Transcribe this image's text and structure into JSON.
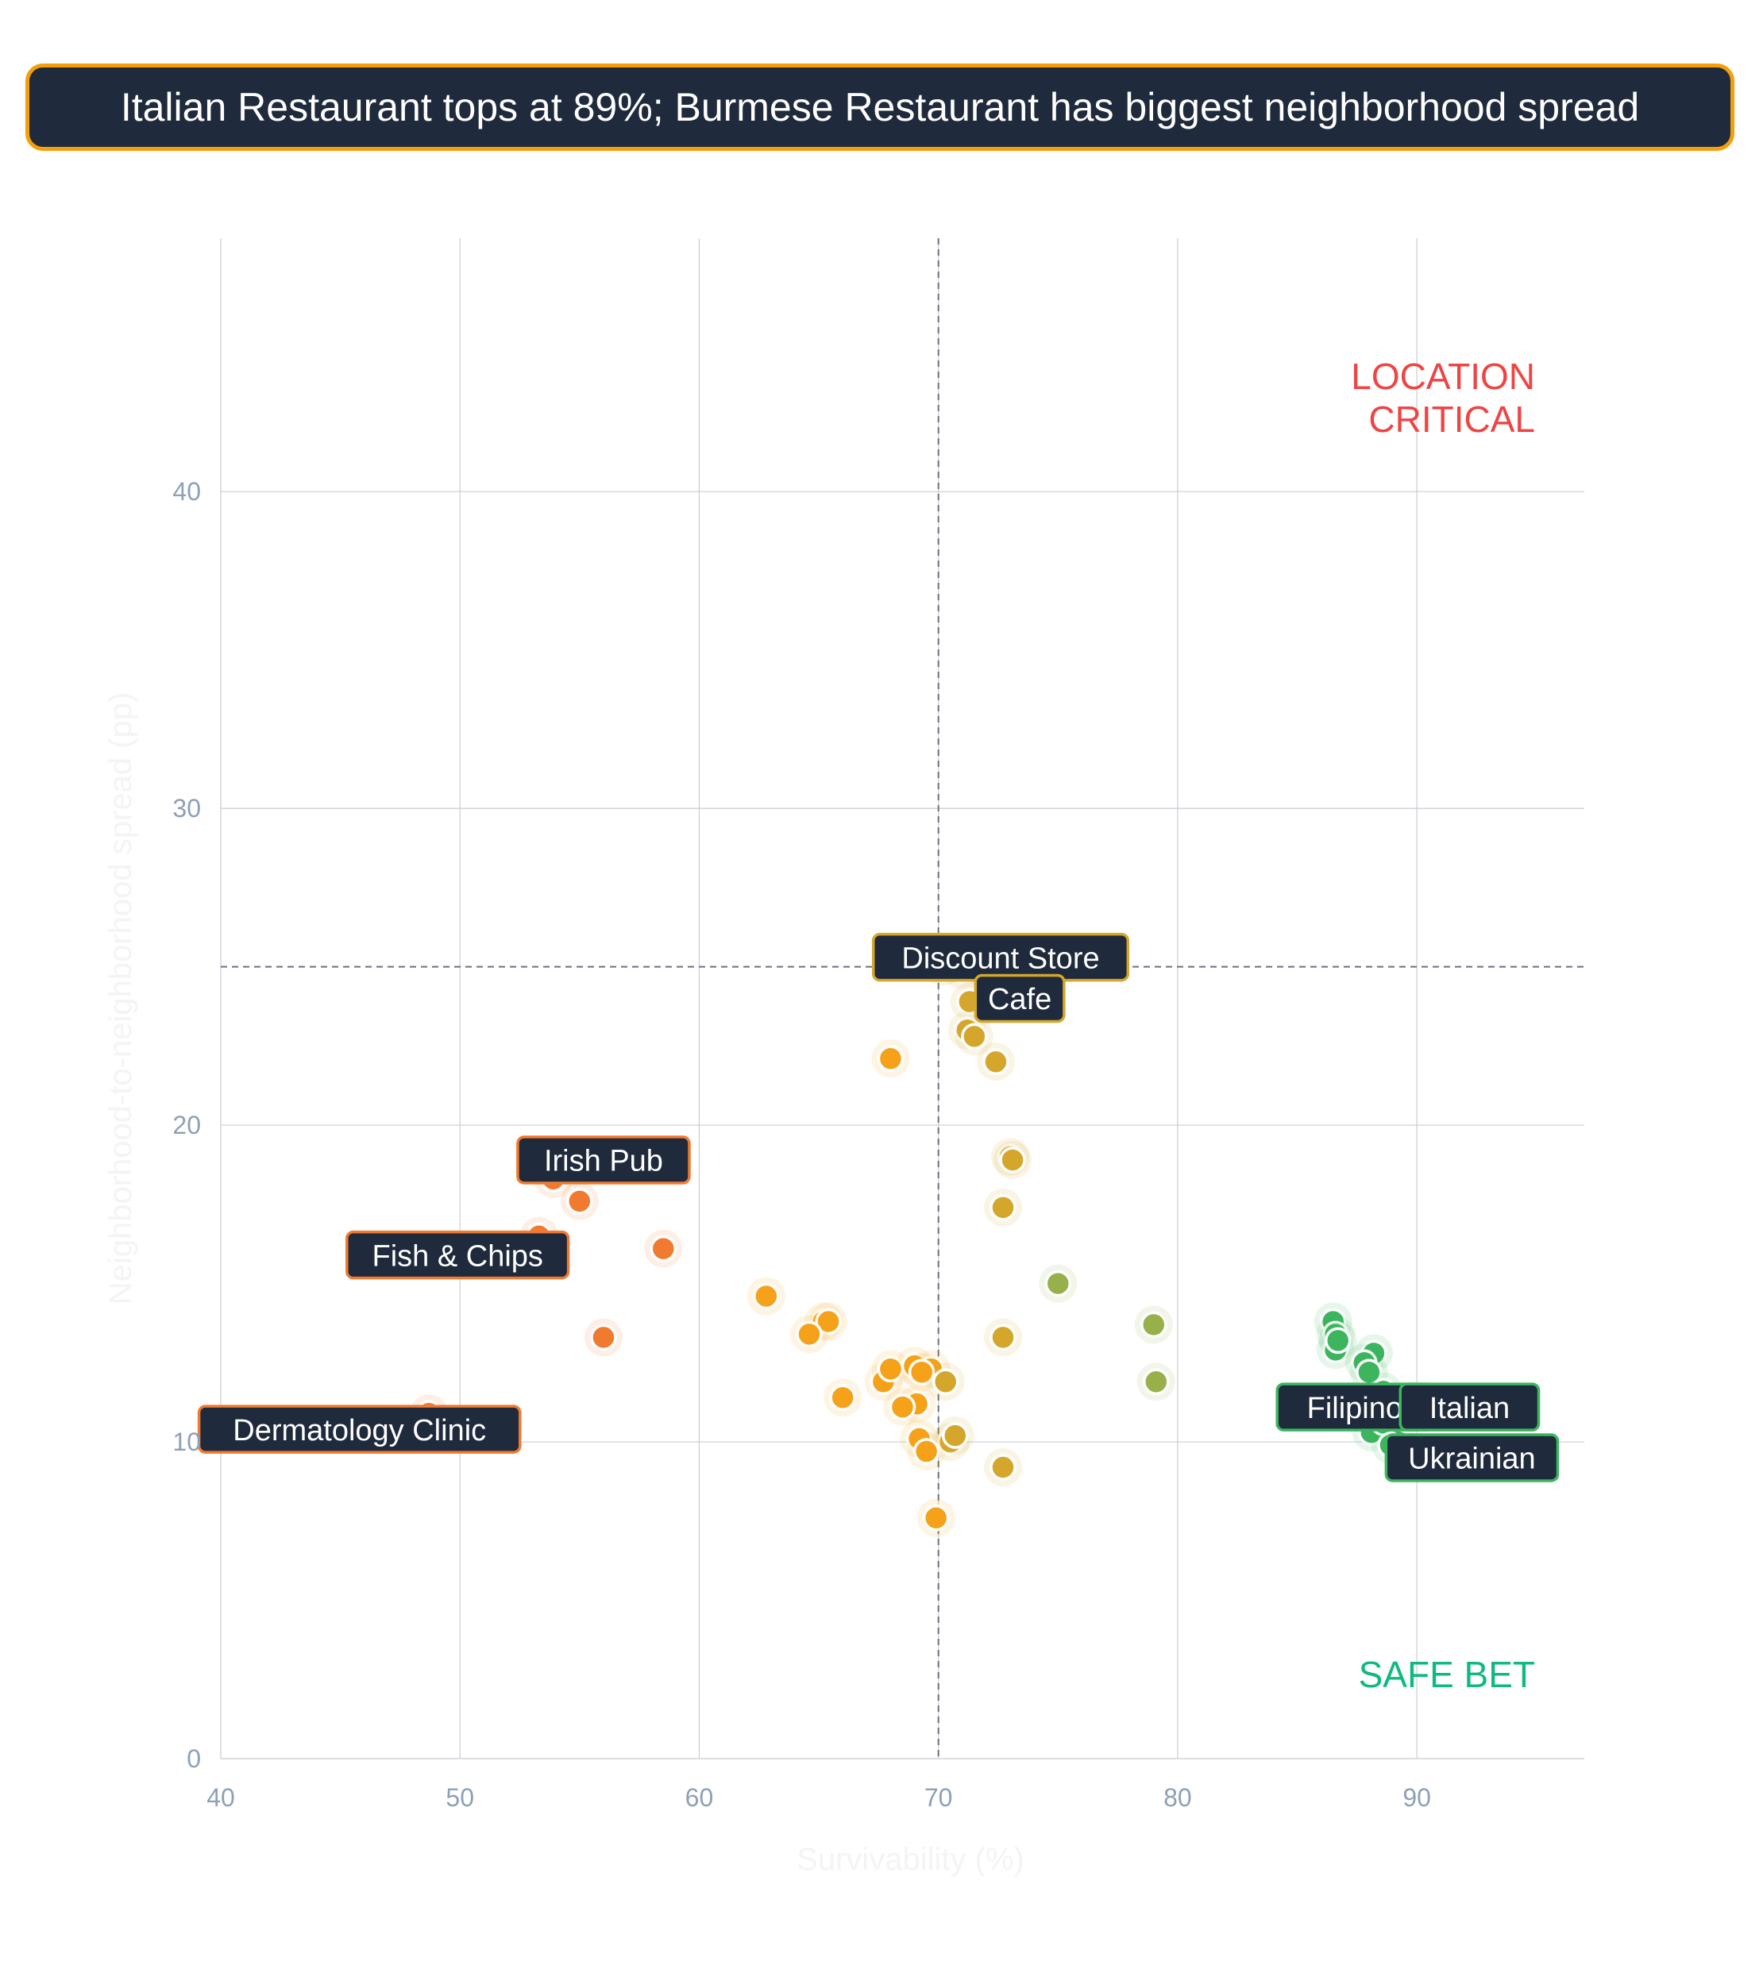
{
  "title": "Italian Restaurant tops at 89%; Burmese Restaurant has biggest neighborhood spread",
  "colors": {
    "title_bg": "#1f2a3c",
    "title_border": "#f59e0b",
    "label_bg": "#1f2a3c",
    "grid": "#c9ccd4",
    "tick": "#8ea0b6",
    "axis_title": "#f3f4f6",
    "danger": "#ef4444",
    "safe": "#10b981",
    "tier_low": "#f07a30",
    "tier_mid": "#f5a21a",
    "tier_midhigh": "#d4a72c",
    "tier_olive": "#97b04a",
    "tier_high": "#3cb55e"
  },
  "chart_data": {
    "type": "scatter",
    "title": "Italian Restaurant tops at 89%; Burmese Restaurant has biggest neighborhood spread",
    "xlabel": "Survivability (%)",
    "ylabel": "Neighborhood-to-neighborhood spread (pp)",
    "xlim": [
      40,
      97
    ],
    "ylim": [
      0,
      48
    ],
    "x_ticks": [
      40,
      50,
      60,
      70,
      80,
      90
    ],
    "y_ticks": [
      0,
      10,
      20,
      30,
      40
    ],
    "grid": true,
    "reference_lines": {
      "x": 70,
      "y": 25
    },
    "quadrant_labels": [
      {
        "text": "LOCATION\nCRITICAL",
        "position": "top-right",
        "color_key": "danger"
      },
      {
        "text": "SAFE BET",
        "position": "bottom-right",
        "color_key": "safe"
      }
    ],
    "points": [
      {
        "x": 70.2,
        "y": 25.0,
        "tier": "tier_midhigh"
      },
      {
        "x": 71.0,
        "y": 24.9,
        "tier": "tier_midhigh"
      },
      {
        "x": 71.8,
        "y": 25.0,
        "tier": "tier_midhigh"
      },
      {
        "x": 71.3,
        "y": 23.9,
        "tier": "tier_midhigh"
      },
      {
        "x": 71.2,
        "y": 23.0,
        "tier": "tier_midhigh"
      },
      {
        "x": 71.5,
        "y": 22.8,
        "tier": "tier_midhigh"
      },
      {
        "x": 72.4,
        "y": 22.0,
        "tier": "tier_midhigh"
      },
      {
        "x": 68.0,
        "y": 22.1,
        "tier": "tier_mid"
      },
      {
        "x": 73.0,
        "y": 19.0,
        "tier": "tier_midhigh"
      },
      {
        "x": 73.1,
        "y": 18.9,
        "tier": "tier_midhigh"
      },
      {
        "x": 72.7,
        "y": 17.4,
        "tier": "tier_midhigh"
      },
      {
        "x": 75.0,
        "y": 15.0,
        "tier": "tier_olive"
      },
      {
        "x": 72.7,
        "y": 13.3,
        "tier": "tier_midhigh"
      },
      {
        "x": 79.0,
        "y": 13.7,
        "tier": "tier_olive"
      },
      {
        "x": 79.1,
        "y": 11.9,
        "tier": "tier_olive"
      },
      {
        "x": 72.7,
        "y": 9.2,
        "tier": "tier_midhigh"
      },
      {
        "x": 53.9,
        "y": 18.3,
        "tier": "tier_low"
      },
      {
        "x": 55.0,
        "y": 17.6,
        "tier": "tier_low"
      },
      {
        "x": 53.3,
        "y": 16.5,
        "tier": "tier_low"
      },
      {
        "x": 58.5,
        "y": 16.1,
        "tier": "tier_low"
      },
      {
        "x": 56.0,
        "y": 13.3,
        "tier": "tier_low"
      },
      {
        "x": 48.7,
        "y": 10.9,
        "tier": "tier_low"
      },
      {
        "x": 62.8,
        "y": 14.6,
        "tier": "tier_mid"
      },
      {
        "x": 65.2,
        "y": 13.8,
        "tier": "tier_mid"
      },
      {
        "x": 65.4,
        "y": 13.8,
        "tier": "tier_mid"
      },
      {
        "x": 64.6,
        "y": 13.4,
        "tier": "tier_mid"
      },
      {
        "x": 66.0,
        "y": 11.4,
        "tier": "tier_mid"
      },
      {
        "x": 67.7,
        "y": 11.9,
        "tier": "tier_mid"
      },
      {
        "x": 68.0,
        "y": 12.3,
        "tier": "tier_mid"
      },
      {
        "x": 69.0,
        "y": 12.4,
        "tier": "tier_mid"
      },
      {
        "x": 69.7,
        "y": 12.3,
        "tier": "tier_mid"
      },
      {
        "x": 69.3,
        "y": 12.2,
        "tier": "tier_mid"
      },
      {
        "x": 70.3,
        "y": 11.9,
        "tier": "tier_midhigh"
      },
      {
        "x": 69.1,
        "y": 11.2,
        "tier": "tier_mid"
      },
      {
        "x": 68.5,
        "y": 11.1,
        "tier": "tier_mid"
      },
      {
        "x": 69.2,
        "y": 10.1,
        "tier": "tier_mid"
      },
      {
        "x": 70.5,
        "y": 10.0,
        "tier": "tier_midhigh"
      },
      {
        "x": 70.7,
        "y": 10.2,
        "tier": "tier_midhigh"
      },
      {
        "x": 69.5,
        "y": 9.7,
        "tier": "tier_mid"
      },
      {
        "x": 69.9,
        "y": 7.6,
        "tier": "tier_mid"
      },
      {
        "x": 86.5,
        "y": 13.8,
        "tier": "tier_high"
      },
      {
        "x": 86.6,
        "y": 13.4,
        "tier": "tier_high"
      },
      {
        "x": 86.6,
        "y": 12.9,
        "tier": "tier_high"
      },
      {
        "x": 86.7,
        "y": 13.2,
        "tier": "tier_high"
      },
      {
        "x": 88.2,
        "y": 12.8,
        "tier": "tier_high"
      },
      {
        "x": 87.8,
        "y": 12.5,
        "tier": "tier_high"
      },
      {
        "x": 88.0,
        "y": 12.2,
        "tier": "tier_high"
      },
      {
        "x": 88.6,
        "y": 11.6,
        "tier": "tier_high"
      },
      {
        "x": 88.4,
        "y": 11.1,
        "tier": "tier_high"
      },
      {
        "x": 88.3,
        "y": 10.8,
        "tier": "tier_high"
      },
      {
        "x": 88.9,
        "y": 10.8,
        "tier": "tier_high"
      },
      {
        "x": 88.1,
        "y": 10.3,
        "tier": "tier_high"
      },
      {
        "x": 88.6,
        "y": 10.6,
        "tier": "tier_high"
      },
      {
        "x": 89.0,
        "y": 10.9,
        "tier": "tier_high"
      },
      {
        "x": 89.2,
        "y": 10.0,
        "tier": "tier_high"
      },
      {
        "x": 88.9,
        "y": 9.9,
        "tier": "tier_high"
      }
    ],
    "annotations": [
      {
        "text": "Discount Store",
        "x": 72.6,
        "y": 25.3,
        "border_key": "tier_midhigh"
      },
      {
        "text": "Cafe",
        "x": 73.4,
        "y": 24.0,
        "border_key": "tier_midhigh"
      },
      {
        "text": "Irish Pub",
        "x": 56.0,
        "y": 18.9,
        "border_key": "tier_low"
      },
      {
        "text": "Fish & Chips",
        "x": 49.9,
        "y": 15.9,
        "border_key": "tier_low"
      },
      {
        "text": "Dermatology Clinic",
        "x": 45.8,
        "y": 10.4,
        "border_key": "tier_low"
      },
      {
        "text": "Filipino",
        "x": 87.4,
        "y": 11.1,
        "border_key": "tier_high"
      },
      {
        "text": "Italian",
        "x": 92.2,
        "y": 11.1,
        "border_key": "tier_high"
      },
      {
        "text": "Ukrainian",
        "x": 92.3,
        "y": 9.5,
        "border_key": "tier_high"
      }
    ]
  }
}
